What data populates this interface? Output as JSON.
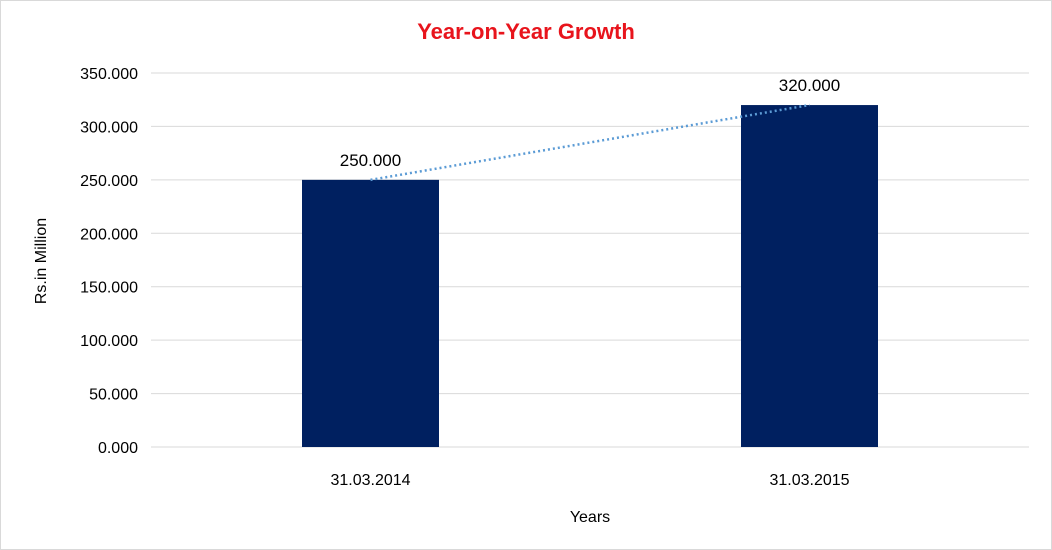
{
  "chart_data": {
    "type": "bar",
    "title": "Year-on-Year Growth",
    "xlabel": "Years",
    "ylabel": "Rs.in Million",
    "categories": [
      "31.03.2014",
      "31.03.2015"
    ],
    "values": [
      250,
      320
    ],
    "value_labels": [
      "250.000",
      "320.000"
    ],
    "ylim": [
      0,
      350
    ],
    "yticks": [
      0,
      50,
      100,
      150,
      200,
      250,
      300,
      350
    ],
    "ytick_labels": [
      "0.000",
      "50.000",
      "100.000",
      "150.000",
      "200.000",
      "250.000",
      "300.000",
      "350.000"
    ],
    "grid": true,
    "legend": "none",
    "trendline": "linear (dotted)",
    "colors": {
      "bar": "#002060",
      "trendline": "#5b9bd5",
      "title": "#e8141c",
      "grid": "#d9d9d9"
    }
  }
}
